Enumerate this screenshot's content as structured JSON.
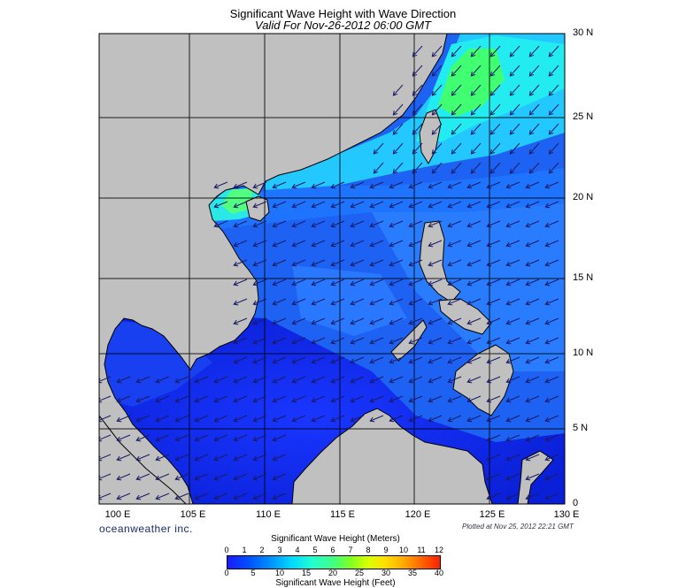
{
  "title": "Significant Wave Height with Wave Direction",
  "subtitle": "Valid For Nov-26-2012 06:00 GMT",
  "lat_labels": [
    "30 N",
    "25 N",
    "20 N",
    "15 N",
    "10 N",
    "5 N",
    "0"
  ],
  "lon_labels": [
    "100 E",
    "105 E",
    "110 E",
    "115 E",
    "120 E",
    "125 E",
    "130 E"
  ],
  "brand": "oceanweather inc.",
  "plotted": "Plotted at Nov 25, 2012 22:21 GMT",
  "colorbar": {
    "meters_title": "Significant Wave Height (Meters)",
    "feet_title": "Significant Wave Height (Feet)",
    "meters_ticks": [
      "0",
      "1",
      "2",
      "3",
      "4",
      "5",
      "6",
      "7",
      "8",
      "9",
      "10",
      "11",
      "12"
    ],
    "feet_ticks": [
      "0",
      "5",
      "10",
      "15",
      "20",
      "25",
      "30",
      "35",
      "40"
    ]
  },
  "colors": {
    "land": "#c0c0c0",
    "deep_blue": "#1a30ff",
    "mid_blue": "#1e6bff",
    "cyan": "#22e8ff",
    "green": "#3cff66",
    "arrow": "#1a1a66"
  },
  "map": {
    "lon_range": [
      100,
      130
    ],
    "lat_range": [
      0,
      30
    ],
    "grid": true,
    "grid_step_deg": 5,
    "arrow_direction": "toward southwest"
  }
}
